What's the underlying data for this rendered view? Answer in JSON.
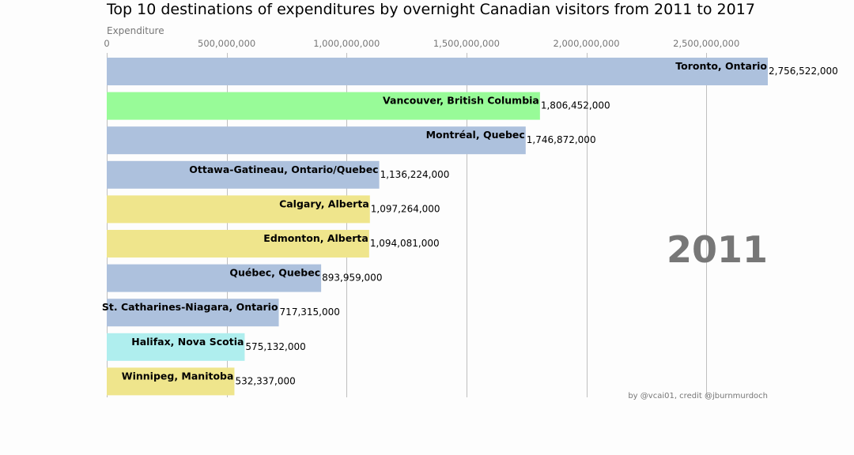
{
  "chart_data": {
    "type": "bar",
    "orientation": "horizontal",
    "title": "Top 10 destinations of expenditures by overnight Canadian visitors from 2011 to 2017",
    "xlabel": "Expenditure",
    "xlim": [
      0,
      2756522000
    ],
    "xticks": [
      0,
      500000000,
      1000000000,
      1500000000,
      2000000000,
      2500000000
    ],
    "xtick_labels": [
      "0",
      "500,000,000",
      "1,000,000,000",
      "1,500,000,000",
      "2,000,000,000",
      "2,500,000,000"
    ],
    "grid": true,
    "year": "2011",
    "credit": "by @vcai01, credit @jburnmurdoch",
    "bars": [
      {
        "name": "Toronto, Ontario",
        "value": 2756522000,
        "value_label": "2,756,522,000",
        "color": "#adc1dd"
      },
      {
        "name": "Vancouver, British Columbia",
        "value": 1806452000,
        "value_label": "1,806,452,000",
        "color": "#98fb98"
      },
      {
        "name": "Montréal, Quebec",
        "value": 1746872000,
        "value_label": "1,746,872,000",
        "color": "#adc1dd"
      },
      {
        "name": "Ottawa-Gatineau, Ontario/Quebec",
        "value": 1136224000,
        "value_label": "1,136,224,000",
        "color": "#adc1dd"
      },
      {
        "name": "Calgary, Alberta",
        "value": 1097264000,
        "value_label": "1,097,264,000",
        "color": "#efe58c"
      },
      {
        "name": "Edmonton, Alberta",
        "value": 1094081000,
        "value_label": "1,094,081,000",
        "color": "#efe58c"
      },
      {
        "name": "Québec, Quebec",
        "value": 893959000,
        "value_label": "893,959,000",
        "color": "#adc1dd"
      },
      {
        "name": "St. Catharines-Niagara, Ontario",
        "value": 717315000,
        "value_label": "717,315,000",
        "color": "#adc1dd"
      },
      {
        "name": "Halifax, Nova Scotia",
        "value": 575132000,
        "value_label": "575,132,000",
        "color": "#afeeee"
      },
      {
        "name": "Winnipeg, Manitoba",
        "value": 532337000,
        "value_label": "532,337,000",
        "color": "#efe58c"
      }
    ]
  }
}
